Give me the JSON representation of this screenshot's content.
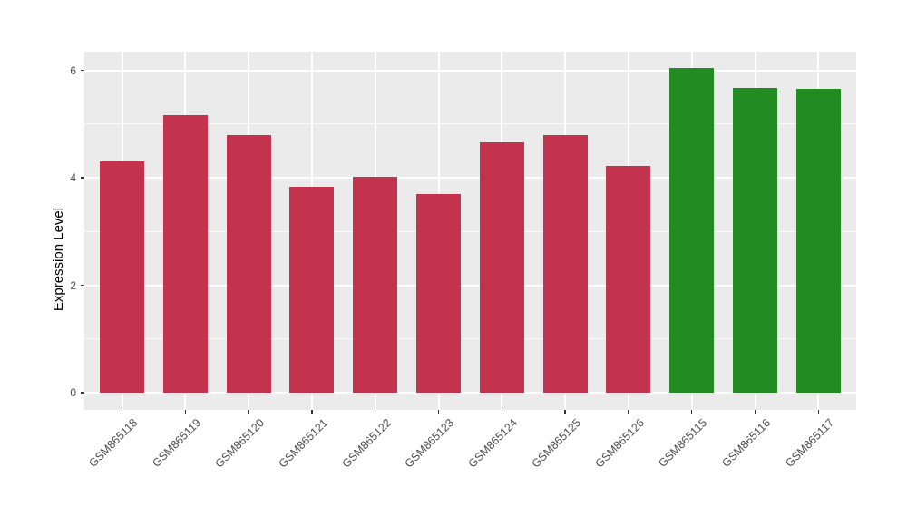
{
  "chart_data": {
    "type": "bar",
    "title": "",
    "xlabel": "",
    "ylabel": "Expression Level",
    "ylim": [
      -0.32,
      6.35
    ],
    "yticks": [
      0,
      2,
      4,
      6
    ],
    "yticks_minor": [
      1,
      3,
      5
    ],
    "grid": true,
    "legend": false,
    "bars": [
      {
        "label": "GSM865118",
        "value": 4.31,
        "color": "#C3334D"
      },
      {
        "label": "GSM865119",
        "value": 5.16,
        "color": "#C3334D"
      },
      {
        "label": "GSM865120",
        "value": 4.8,
        "color": "#C3334D"
      },
      {
        "label": "GSM865121",
        "value": 3.84,
        "color": "#C3334D"
      },
      {
        "label": "GSM865122",
        "value": 4.02,
        "color": "#C3334D"
      },
      {
        "label": "GSM865123",
        "value": 3.7,
        "color": "#C3334D"
      },
      {
        "label": "GSM865124",
        "value": 4.66,
        "color": "#C3334D"
      },
      {
        "label": "GSM865125",
        "value": 4.79,
        "color": "#C3334D"
      },
      {
        "label": "GSM865126",
        "value": 4.22,
        "color": "#C3334D"
      },
      {
        "label": "GSM865115",
        "value": 6.05,
        "color": "#228B22"
      },
      {
        "label": "GSM865116",
        "value": 5.68,
        "color": "#228B22"
      },
      {
        "label": "GSM865117",
        "value": 5.66,
        "color": "#228B22"
      }
    ],
    "colors": {
      "panel_background": "#EBEBEB",
      "gridline": "#FFFFFF",
      "group_red": "#C3334D",
      "group_green": "#228B22",
      "tick_label": "#4D4D4D",
      "axis_title": "#000000",
      "figure_background": "#FFFFFF"
    }
  }
}
